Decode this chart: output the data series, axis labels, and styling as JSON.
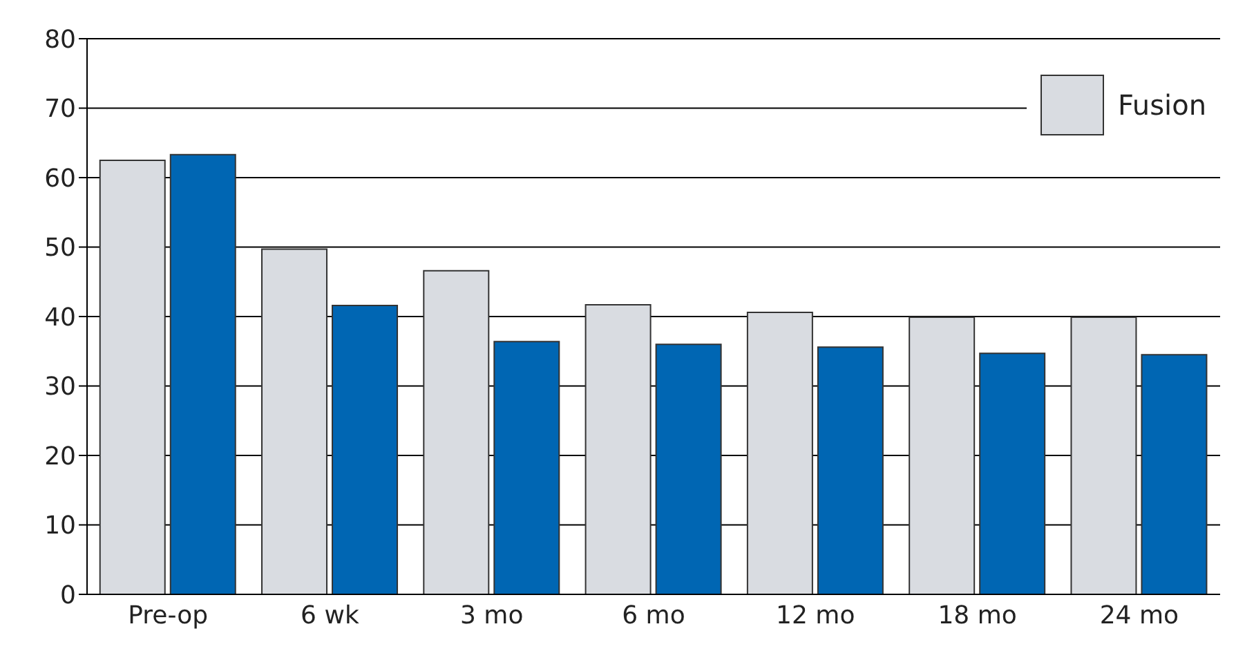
{
  "chart_data": {
    "type": "bar",
    "categories": [
      "Pre-op",
      "6 wk",
      "3 mo",
      "6 mo",
      "12 mo",
      "18 mo",
      "24 mo"
    ],
    "series": [
      {
        "name": "Fusion",
        "color": "#d9dce1",
        "values": [
          62.5,
          49.7,
          46.6,
          41.7,
          40.6,
          39.9,
          39.9
        ]
      },
      {
        "color": "#0066b3",
        "values": [
          63.3,
          41.6,
          36.4,
          36.0,
          35.6,
          34.7,
          34.5
        ]
      }
    ],
    "ylim": [
      0,
      80
    ],
    "yticks": [
      0,
      10,
      20,
      30,
      40,
      50,
      60,
      70,
      80
    ],
    "grid": "y",
    "legend": "top right"
  }
}
